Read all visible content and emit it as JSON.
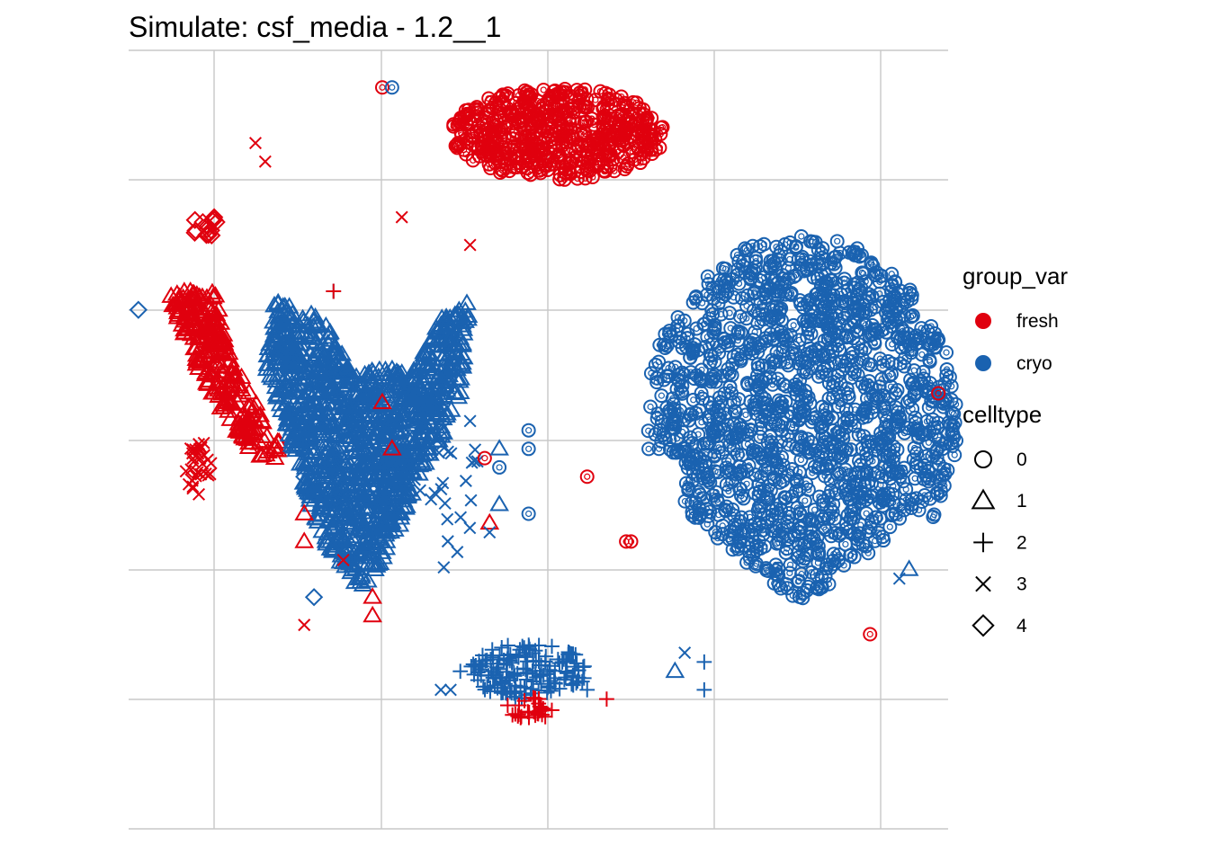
{
  "chart_data": {
    "type": "scatter",
    "title": "Simulate: csf_media - 1.2__1",
    "xlabel": "",
    "ylabel": "",
    "xlim": [
      -42,
      42
    ],
    "ylim": [
      -42,
      42
    ],
    "grid": true,
    "legend_position": "right",
    "colors": {
      "fresh": "#e0000e",
      "cryo": "#1a62b0"
    },
    "color_legend": {
      "title": "group_var",
      "entries": [
        "fresh",
        "cryo"
      ]
    },
    "shape_legend": {
      "title": "celltype",
      "entries": [
        {
          "label": "0",
          "shape": "circle"
        },
        {
          "label": "1",
          "shape": "triangle"
        },
        {
          "label": "2",
          "shape": "plus"
        },
        {
          "label": "3",
          "shape": "cross"
        },
        {
          "label": "4",
          "shape": "diamond"
        }
      ]
    },
    "clusters": [
      {
        "group": "fresh",
        "celltype": "0",
        "shape": "ellipse",
        "cx": 2,
        "cy": 33,
        "rx": 11,
        "ry": 5,
        "n": 500
      },
      {
        "group": "cryo",
        "celltype": "0",
        "shape": "blob",
        "cx": 27,
        "cy": 2,
        "rx": 16,
        "ry": 20,
        "n": 1400
      },
      {
        "group": "fresh",
        "celltype": "1",
        "shape": "poly",
        "n": 260,
        "polygon": [
          [
            -38,
            16
          ],
          [
            -33,
            16
          ],
          [
            -32,
            10
          ],
          [
            -28,
            2
          ],
          [
            -26,
            -1
          ],
          [
            -29,
            -2
          ],
          [
            -33,
            4
          ],
          [
            -36,
            10
          ],
          [
            -37,
            13
          ]
        ]
      },
      {
        "group": "cryo",
        "celltype": "1",
        "shape": "poly",
        "n": 1250,
        "polygon": [
          [
            -27,
            15
          ],
          [
            -22,
            13
          ],
          [
            -19,
            7
          ],
          [
            -15,
            8
          ],
          [
            -13,
            7
          ],
          [
            -10,
            13
          ],
          [
            -7,
            15
          ],
          [
            -8,
            5
          ],
          [
            -10,
            0
          ],
          [
            -12,
            -4
          ],
          [
            -14,
            -9
          ],
          [
            -16,
            -13
          ],
          [
            -17,
            -16
          ],
          [
            -19,
            -16
          ],
          [
            -22,
            -11
          ],
          [
            -24,
            -5
          ],
          [
            -26,
            2
          ],
          [
            -28,
            8
          ]
        ]
      },
      {
        "group": "cryo",
        "celltype": "2",
        "shape": "ellipse",
        "cx": -1,
        "cy": -25,
        "rx": 6,
        "ry": 3,
        "n": 160
      },
      {
        "group": "fresh",
        "celltype": "2",
        "shape": "ellipse",
        "cx": -1,
        "cy": -29,
        "rx": 2.5,
        "ry": 1.3,
        "n": 30
      },
      {
        "group": "fresh",
        "celltype": "3",
        "shape": "ellipse",
        "cx": -35,
        "cy": -3,
        "rx": 1.5,
        "ry": 3,
        "n": 30
      },
      {
        "group": "fresh",
        "celltype": "4",
        "shape": "ellipse",
        "cx": -34,
        "cy": 23,
        "rx": 1.5,
        "ry": 1.2,
        "n": 14
      },
      {
        "group": "cryo",
        "celltype": "3",
        "shape": "ellipse",
        "cx": -9,
        "cy": -6,
        "rx": 4,
        "ry": 8,
        "n": 25
      }
    ],
    "points": [
      {
        "x": -29,
        "y": 32,
        "group": "fresh",
        "celltype": "3"
      },
      {
        "x": -28,
        "y": 30,
        "group": "fresh",
        "celltype": "3"
      },
      {
        "x": -14,
        "y": 24,
        "group": "fresh",
        "celltype": "3"
      },
      {
        "x": -7,
        "y": 21,
        "group": "fresh",
        "celltype": "3"
      },
      {
        "x": -21,
        "y": 16,
        "group": "cryo",
        "celltype": "2"
      },
      {
        "x": -21,
        "y": 16,
        "group": "fresh",
        "celltype": "2"
      },
      {
        "x": -41,
        "y": 14,
        "group": "cryo",
        "celltype": "4"
      },
      {
        "x": -16,
        "y": 38,
        "group": "fresh",
        "celltype": "0"
      },
      {
        "x": -15,
        "y": 38,
        "group": "cryo",
        "celltype": "0"
      },
      {
        "x": 5,
        "y": -4,
        "group": "fresh",
        "celltype": "0"
      },
      {
        "x": 9,
        "y": -11,
        "group": "fresh",
        "celltype": "0"
      },
      {
        "x": 9.5,
        "y": -11,
        "group": "fresh",
        "celltype": "0"
      },
      {
        "x": 34,
        "y": -21,
        "group": "fresh",
        "celltype": "0"
      },
      {
        "x": 41,
        "y": 5,
        "group": "fresh",
        "celltype": "0"
      },
      {
        "x": -5.5,
        "y": -2,
        "group": "fresh",
        "celltype": "0"
      },
      {
        "x": -4,
        "y": -3,
        "group": "cryo",
        "celltype": "0"
      },
      {
        "x": -1,
        "y": -1,
        "group": "cryo",
        "celltype": "0"
      },
      {
        "x": -1,
        "y": -8,
        "group": "cryo",
        "celltype": "0"
      },
      {
        "x": -1,
        "y": 1,
        "group": "cryo",
        "celltype": "0"
      },
      {
        "x": -15,
        "y": -1,
        "group": "fresh",
        "celltype": "1"
      },
      {
        "x": -5,
        "y": -9,
        "group": "fresh",
        "celltype": "1"
      },
      {
        "x": -16,
        "y": 4,
        "group": "fresh",
        "celltype": "1"
      },
      {
        "x": -20,
        "y": -13,
        "group": "fresh",
        "celltype": "3"
      },
      {
        "x": -17,
        "y": -17,
        "group": "fresh",
        "celltype": "1"
      },
      {
        "x": -24,
        "y": -8,
        "group": "fresh",
        "celltype": "1"
      },
      {
        "x": -24,
        "y": -11,
        "group": "fresh",
        "celltype": "1"
      },
      {
        "x": -27,
        "y": -2,
        "group": "fresh",
        "celltype": "1"
      },
      {
        "x": 38,
        "y": -14,
        "group": "cryo",
        "celltype": "1"
      },
      {
        "x": 37,
        "y": -15,
        "group": "cryo",
        "celltype": "3"
      },
      {
        "x": 14,
        "y": -25,
        "group": "cryo",
        "celltype": "1"
      },
      {
        "x": 17,
        "y": -27,
        "group": "cryo",
        "celltype": "2"
      },
      {
        "x": -7,
        "y": 2,
        "group": "cryo",
        "celltype": "3"
      },
      {
        "x": -5,
        "y": -10,
        "group": "cryo",
        "celltype": "3"
      },
      {
        "x": -4,
        "y": -1,
        "group": "cryo",
        "celltype": "1"
      },
      {
        "x": -4,
        "y": -7,
        "group": "cryo",
        "celltype": "1"
      },
      {
        "x": -17,
        "y": -19,
        "group": "fresh",
        "celltype": "1"
      },
      {
        "x": -18,
        "y": -10,
        "group": "cryo",
        "celltype": "0"
      },
      {
        "x": -24,
        "y": -4,
        "group": "cryo",
        "celltype": "4"
      },
      {
        "x": -23,
        "y": -17,
        "group": "cryo",
        "celltype": "4"
      },
      {
        "x": -24,
        "y": -20,
        "group": "fresh",
        "celltype": "3"
      },
      {
        "x": -10,
        "y": -27,
        "group": "cryo",
        "celltype": "3"
      },
      {
        "x": -9,
        "y": -27,
        "group": "cryo",
        "celltype": "3"
      },
      {
        "x": -8,
        "y": -25,
        "group": "cryo",
        "celltype": "2"
      },
      {
        "x": 7,
        "y": -28,
        "group": "fresh",
        "celltype": "2"
      },
      {
        "x": 5,
        "y": -27,
        "group": "cryo",
        "celltype": "2"
      },
      {
        "x": 15,
        "y": -23,
        "group": "cryo",
        "celltype": "3"
      },
      {
        "x": 17,
        "y": -24,
        "group": "cryo",
        "celltype": "2"
      }
    ]
  }
}
